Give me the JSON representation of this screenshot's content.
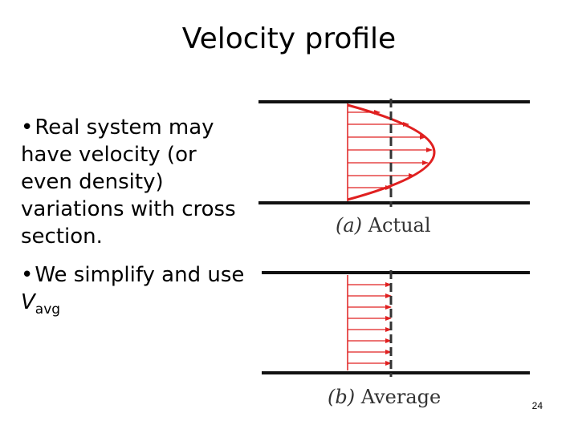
{
  "slide": {
    "title": "Velocity profile",
    "page_number": "24"
  },
  "bullets": [
    {
      "bullet": "•",
      "text": "Real system may have velocity (or even density) variations with cross section."
    },
    {
      "bullet": "•",
      "text_before": "We simplify and use ",
      "var": "V",
      "sub": "avg"
    }
  ],
  "figure": {
    "caption_a_letter": "(a)",
    "caption_a_text": " Actual",
    "caption_b_letter": "(b)",
    "caption_b_text": " Average",
    "colors": {
      "wall": "#111111",
      "arrow": "#e02020",
      "centerline": "#333333"
    }
  }
}
